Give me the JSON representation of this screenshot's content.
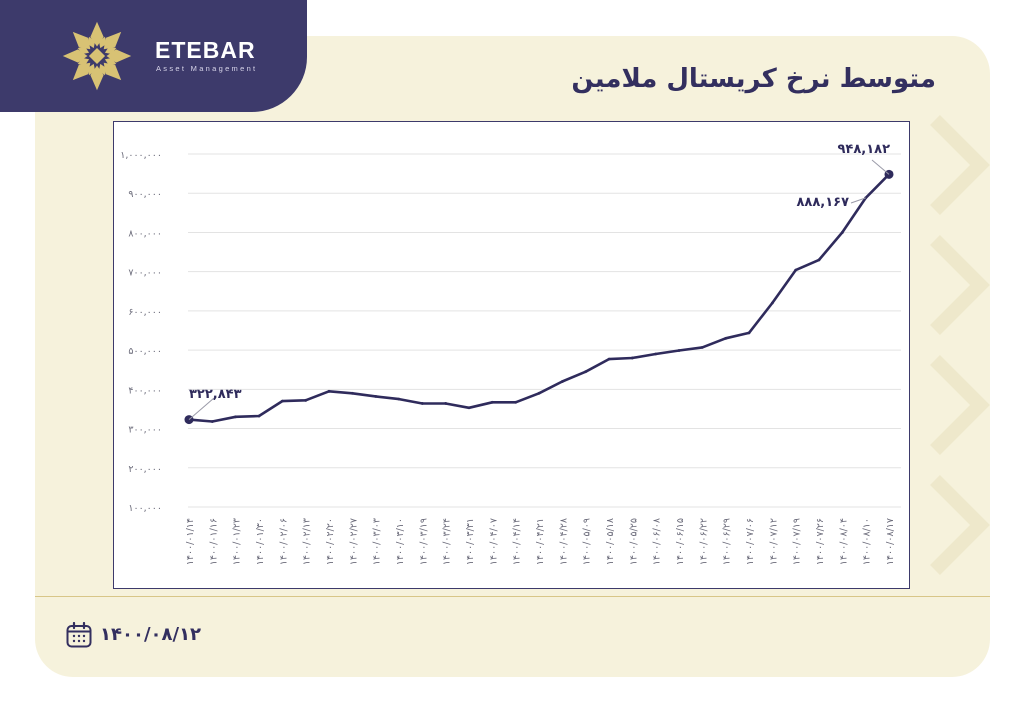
{
  "brand": {
    "name": "ETEBAR",
    "tagline": "Asset Management",
    "color": "#3d3a6b",
    "logo_color": "#d8c274"
  },
  "title": "متوسط نرخ کریستال ملامین",
  "footer": {
    "date": "۱۴۰۰/۰۸/۱۲",
    "icon": "calendar-icon"
  },
  "colors": {
    "line": "#2f2b5c",
    "card": "#f6f2dc",
    "grid": "#e3e3e3",
    "axis_text": "#6b6b7a"
  },
  "chart_data": {
    "type": "line",
    "title": "",
    "xlabel": "",
    "ylabel": "",
    "ylim": [
      100000,
      1000000
    ],
    "yticks": [
      100000,
      200000,
      300000,
      400000,
      500000,
      600000,
      700000,
      800000,
      900000,
      1000000
    ],
    "ytick_labels": [
      "۱۰۰,۰۰۰",
      "۲۰۰,۰۰۰",
      "۳۰۰,۰۰۰",
      "۴۰۰,۰۰۰",
      "۵۰۰,۰۰۰",
      "۶۰۰,۰۰۰",
      "۷۰۰,۰۰۰",
      "۸۰۰,۰۰۰",
      "۹۰۰,۰۰۰",
      "۱,۰۰۰,۰۰۰"
    ],
    "grid": true,
    "legend": "none",
    "categories": [
      "۱۴۰۰/۰۱/۱۴",
      "۱۴۰۰/۰۱/۱۶",
      "۱۴۰۰/۰۱/۲۳",
      "۱۴۰۰/۰۱/۳۰",
      "۱۴۰۰/۰۲/۰۶",
      "۱۴۰۰/۰۲/۱۳",
      "۱۴۰۰/۰۲/۲۰",
      "۱۴۰۰/۰۲/۲۷",
      "۱۴۰۰/۰۳/۰۳",
      "۱۴۰۰/۰۳/۱۰",
      "۱۴۰۰/۰۳/۱۹",
      "۱۴۰۰/۰۳/۲۴",
      "۱۴۰۰/۰۳/۳۱",
      "۱۴۰۰/۰۴/۰۷",
      "۱۴۰۰/۰۴/۱۴",
      "۱۴۰۰/۰۴/۲۱",
      "۱۴۰۰/۰۴/۲۸",
      "۱۴۰۰/۰۵/۰۹",
      "۱۴۰۰/۰۵/۱۸",
      "۱۴۰۰/۰۵/۲۵",
      "۱۴۰۰/۰۶/۰۸",
      "۱۴۰۰/۰۶/۱۵",
      "۱۴۰۰/۰۶/۲۲",
      "۱۴۰۰/۰۶/۲۹",
      "۱۴۰۰/۰۷/۰۶",
      "۱۴۰۰/۰۷/۱۲",
      "۱۴۰۰/۰۷/۱۹",
      "۱۴۰۰/۰۷/۲۶",
      "۱۴۰۰/۰۸/۰۴",
      "۱۴۰۰/۰۸/۱۰",
      "۱۴۰۰/۰۸/۱۷"
    ],
    "series": [
      {
        "values": [
          322843,
          318000,
          330000,
          332000,
          370000,
          372000,
          395000,
          390000,
          382000,
          375000,
          364000,
          364000,
          353000,
          367000,
          367000,
          390000,
          420000,
          445000,
          477000,
          480000,
          490000,
          499000,
          507000,
          530000,
          544000,
          620000,
          704000,
          730000,
          800000,
          888167,
          948182
        ]
      }
    ],
    "annotations": [
      {
        "index": 0,
        "label": "۳۲۲,۸۴۳"
      },
      {
        "index": 29,
        "label": "۸۸۸,۱۶۷"
      },
      {
        "index": 30,
        "label": "۹۴۸,۱۸۲"
      }
    ]
  }
}
